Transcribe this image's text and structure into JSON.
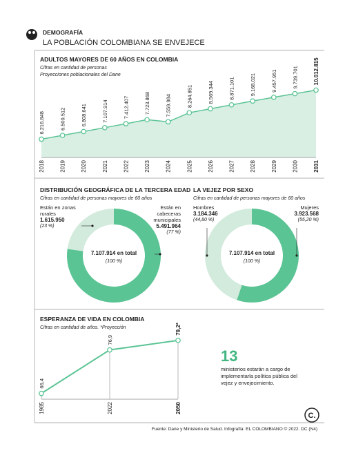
{
  "header": {
    "section": "DEMOGRAFÍA",
    "title": "LA POBLACIÓN COLOMBIANA SE ENVEJECE"
  },
  "chart_data": [
    {
      "type": "area",
      "title": "ADULTOS MAYORES DE 60 AÑOS EN COLOMBIA",
      "subtitle": "Cifras en cantidad de personas",
      "note": "Proyecciones poblacionales del Dane",
      "categories": [
        "2018",
        "2019",
        "2020",
        "2021",
        "2022",
        "2023",
        "2024",
        "2025",
        "2026",
        "2027",
        "2028",
        "2029",
        "2030",
        "2031"
      ],
      "values": [
        6216848,
        6509512,
        6808641,
        7107914,
        7412407,
        7723868,
        7559984,
        8264851,
        8569344,
        8871101,
        9168021,
        9457951,
        9739701,
        10012815
      ],
      "value_labels": [
        "6.216.848",
        "6.509.512",
        "6.808.641",
        "7.107.914",
        "7.412.407",
        "7.723.868",
        "7.559.984",
        "8.264.851",
        "8.569.344",
        "8.871.101",
        "9.168.021",
        "9.457.951",
        "9.739.701",
        "10.012.815"
      ],
      "color": "#5bc494",
      "fill": "#d9efe4",
      "ylim": [
        4800000,
        11000000
      ]
    },
    {
      "type": "donut",
      "title": "DISTRIBUCIÓN GEOGRÁFICA DE LA TERCERA EDAD",
      "subtitle": "Cifras en cantidad de personas mayores de 60 años",
      "categories": [
        "Están en zonas rurales",
        "Están en cabeceras municipales"
      ],
      "values": [
        1615950,
        5491964
      ],
      "value_labels": [
        "1.615.950",
        "5.491.964"
      ],
      "percent_labels": [
        "(23 %)",
        "(77 %)"
      ],
      "total": 7107914,
      "total_label": "7.107.914 en total",
      "total_percent_label": "(100 %)",
      "colors": [
        "#d3ebdd",
        "#5bc494"
      ]
    },
    {
      "type": "donut",
      "title": "LA VEJEZ POR SEXO",
      "subtitle": "Cifras en cantidad de personas mayores de 60 años",
      "categories": [
        "Hombres",
        "Mujeres"
      ],
      "values": [
        3184346,
        3923568
      ],
      "value_labels": [
        "3.184.346",
        "3.923.568"
      ],
      "percent_labels": [
        "(44,80 %)",
        "(55,20 %)"
      ],
      "total": 7107914,
      "total_label": "7.107.914 en total",
      "total_percent_label": "(100 %)",
      "colors": [
        "#d3ebdd",
        "#5bc494"
      ]
    },
    {
      "type": "line",
      "title": "ESPERANZA DE VIDA EN COLOMBIA",
      "subtitle": "Cifras en cantidad de años. *Proyección",
      "categories": [
        "1985",
        "2022",
        "2050"
      ],
      "values": [
        66.4,
        76.9,
        79.2
      ],
      "value_labels": [
        "66,4",
        "76,9",
        "79,2*"
      ],
      "color": "#5bc494",
      "ylim": [
        65,
        83
      ]
    }
  ],
  "note": {
    "number": "13",
    "text": "ministerios estarán a cargo de implementarla política pública del vejez y envejecimiento."
  },
  "footer": {
    "source": "Fuente: Dane y Ministerio de Salud. Infografía: EL COLOMBIANO © 2022. DC (N4)",
    "logo": "C."
  }
}
